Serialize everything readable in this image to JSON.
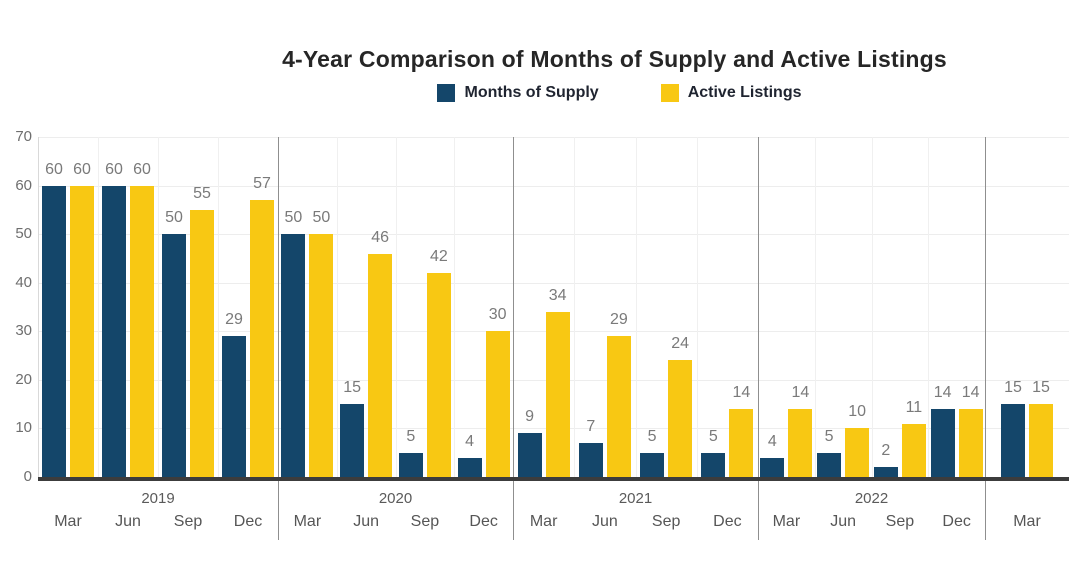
{
  "chart_data": {
    "type": "bar",
    "title": "4-Year Comparison of Months of Supply and Active Listings",
    "xlabel": "",
    "ylabel": "",
    "ylim": [
      0,
      70
    ],
    "yticks": [
      0,
      10,
      20,
      30,
      40,
      50,
      60,
      70
    ],
    "grid": true,
    "legend_position": "top",
    "series": [
      {
        "name": "Months of Supply",
        "key": "months_of_supply",
        "color": "#14466A"
      },
      {
        "name": "Active Listings",
        "key": "active_listings",
        "color": "#F8C813"
      }
    ],
    "groups": [
      {
        "year": "2019",
        "quarters": [
          "Mar",
          "Jun",
          "Sep",
          "Dec"
        ],
        "months_of_supply": [
          60,
          60,
          50,
          29
        ],
        "active_listings": [
          60,
          60,
          55,
          57
        ]
      },
      {
        "year": "2020",
        "quarters": [
          "Mar",
          "Jun",
          "Sep",
          "Dec"
        ],
        "months_of_supply": [
          50,
          15,
          5,
          4
        ],
        "active_listings": [
          50,
          46,
          42,
          30
        ]
      },
      {
        "year": "2021",
        "quarters": [
          "Mar",
          "Jun",
          "Sep",
          "Dec"
        ],
        "months_of_supply": [
          9,
          7,
          5,
          5
        ],
        "active_listings": [
          34,
          29,
          24,
          14
        ]
      },
      {
        "year": "2022",
        "quarters": [
          "Mar",
          "Jun",
          "Sep",
          "Dec"
        ],
        "months_of_supply": [
          4,
          5,
          2,
          14
        ],
        "active_listings": [
          14,
          10,
          11,
          14
        ]
      },
      {
        "year": "",
        "quarters": [
          "Mar"
        ],
        "months_of_supply": [
          15
        ],
        "active_listings": [
          15
        ]
      }
    ]
  }
}
